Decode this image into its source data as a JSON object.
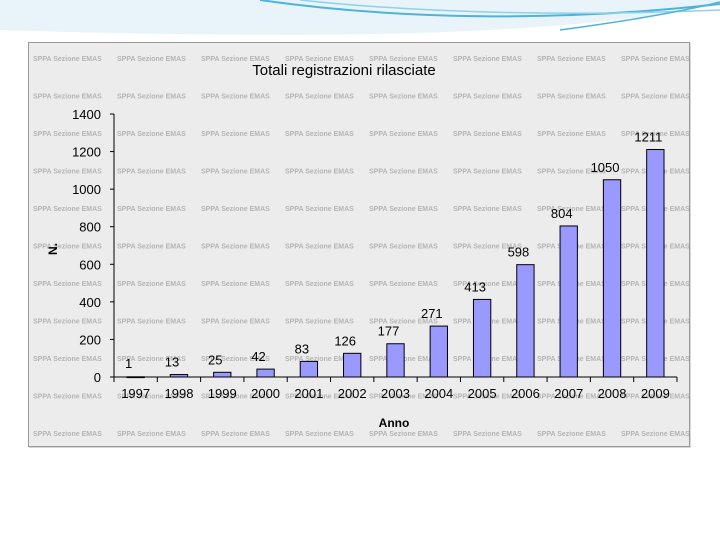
{
  "colors": {
    "bar_fill": "#9999ff",
    "bar_stroke": "#000000",
    "frame_bg": "#ececec",
    "swoosh": "#4fb3d9"
  },
  "watermark_text": "SPPA Sezione EMAS",
  "chart_data": {
    "type": "bar",
    "title": "Totali registrazioni rilasciate",
    "xlabel": "Anno",
    "ylabel": "N.",
    "categories": [
      "1997",
      "1998",
      "1999",
      "2000",
      "2001",
      "2002",
      "2003",
      "2004",
      "2005",
      "2006",
      "2007",
      "2008",
      "2009"
    ],
    "series": [
      {
        "values": [
          1,
          13,
          25,
          42,
          83,
          126,
          177,
          271,
          413,
          598,
          804,
          1050,
          1211
        ]
      }
    ],
    "ylim": [
      0,
      1400
    ],
    "yticks": [
      0,
      200,
      400,
      600,
      800,
      1000,
      1200,
      1400
    ],
    "grid": false,
    "legend": "none"
  }
}
